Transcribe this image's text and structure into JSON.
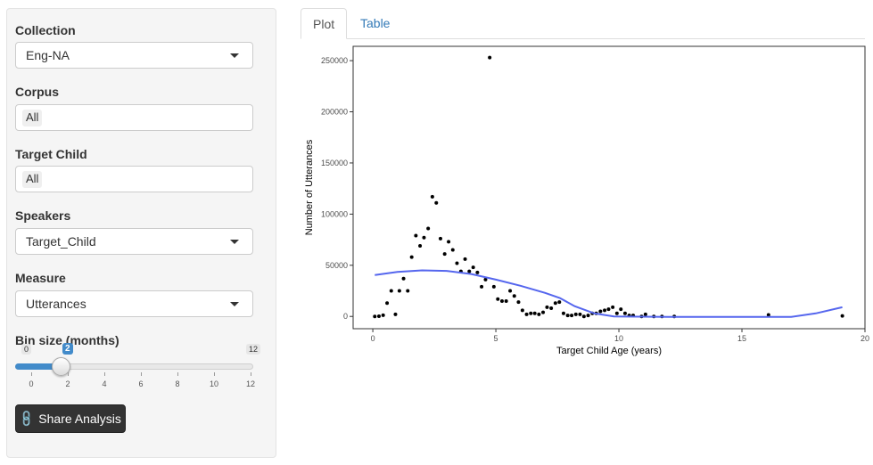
{
  "sidebar": {
    "collection": {
      "label": "Collection",
      "value": "Eng-NA"
    },
    "corpus": {
      "label": "Corpus",
      "value": "All"
    },
    "target_child": {
      "label": "Target Child",
      "value": "All"
    },
    "speakers": {
      "label": "Speakers",
      "value": "Target_Child"
    },
    "measure": {
      "label": "Measure",
      "value": "Utterances"
    },
    "bin_size": {
      "label": "Bin size (months)",
      "min": "0",
      "max": "12",
      "value": "2",
      "ticks": [
        "0",
        "2",
        "4",
        "6",
        "8",
        "10",
        "12"
      ]
    },
    "share_button": {
      "label": "Share Analysis",
      "icon": "link-icon"
    }
  },
  "tabs": [
    {
      "label": "Plot",
      "active": true
    },
    {
      "label": "Table",
      "active": false
    }
  ],
  "chart_data": {
    "type": "scatter",
    "xlabel": "Target Child Age (years)",
    "ylabel": "Number of Utterances",
    "xlim": [
      -0.8,
      20
    ],
    "ylim": [
      -12000,
      264000
    ],
    "x_ticks": [
      0,
      5,
      10,
      15,
      20
    ],
    "x_tick_labels": [
      "0",
      "5",
      "10",
      "15",
      "20"
    ],
    "y_ticks": [
      0,
      50000,
      100000,
      150000,
      200000,
      250000
    ],
    "y_tick_labels": [
      "0",
      "50000",
      "100000",
      "150000",
      "200000",
      "250000"
    ],
    "grid": false,
    "point_color": "#000000",
    "smooth_color": "#5566ee",
    "points": [
      [
        0.08,
        0
      ],
      [
        0.25,
        200
      ],
      [
        0.42,
        1200
      ],
      [
        0.58,
        13000
      ],
      [
        0.75,
        25000
      ],
      [
        0.92,
        2000
      ],
      [
        1.08,
        25000
      ],
      [
        1.25,
        37000
      ],
      [
        1.42,
        25000
      ],
      [
        1.58,
        58000
      ],
      [
        1.75,
        79000
      ],
      [
        1.92,
        69000
      ],
      [
        2.08,
        77000
      ],
      [
        2.25,
        86000
      ],
      [
        2.42,
        117000
      ],
      [
        2.58,
        111000
      ],
      [
        2.75,
        76000
      ],
      [
        2.92,
        61000
      ],
      [
        3.08,
        73000
      ],
      [
        3.25,
        65000
      ],
      [
        3.42,
        52000
      ],
      [
        3.58,
        44000
      ],
      [
        3.75,
        56000
      ],
      [
        3.92,
        44000
      ],
      [
        4.08,
        48000
      ],
      [
        4.25,
        43000
      ],
      [
        4.42,
        29000
      ],
      [
        4.58,
        36000
      ],
      [
        4.75,
        253000
      ],
      [
        4.92,
        29000
      ],
      [
        5.08,
        17000
      ],
      [
        5.25,
        15000
      ],
      [
        5.42,
        15000
      ],
      [
        5.58,
        25000
      ],
      [
        5.75,
        20000
      ],
      [
        5.92,
        14000
      ],
      [
        6.08,
        6000
      ],
      [
        6.25,
        2000
      ],
      [
        6.42,
        3000
      ],
      [
        6.58,
        3000
      ],
      [
        6.75,
        2000
      ],
      [
        6.92,
        4000
      ],
      [
        7.08,
        9000
      ],
      [
        7.25,
        8000
      ],
      [
        7.42,
        13000
      ],
      [
        7.58,
        14000
      ],
      [
        7.75,
        3000
      ],
      [
        7.92,
        1000
      ],
      [
        8.08,
        1000
      ],
      [
        8.25,
        2000
      ],
      [
        8.42,
        2000
      ],
      [
        8.58,
        0
      ],
      [
        8.75,
        1000
      ],
      [
        8.92,
        3000
      ],
      [
        9.08,
        3000
      ],
      [
        9.25,
        5000
      ],
      [
        9.42,
        6000
      ],
      [
        9.58,
        7000
      ],
      [
        9.75,
        9000
      ],
      [
        9.92,
        3000
      ],
      [
        10.08,
        7000
      ],
      [
        10.25,
        3000
      ],
      [
        10.42,
        1000
      ],
      [
        10.58,
        1000
      ],
      [
        10.92,
        0
      ],
      [
        11.08,
        2000
      ],
      [
        11.42,
        0
      ],
      [
        11.75,
        0
      ],
      [
        12.25,
        0
      ],
      [
        16.08,
        1500
      ],
      [
        19.08,
        500
      ]
    ],
    "smooth": [
      [
        0.08,
        40500
      ],
      [
        1.0,
        43500
      ],
      [
        2.0,
        45000
      ],
      [
        3.0,
        44500
      ],
      [
        4.0,
        41500
      ],
      [
        5.0,
        36000
      ],
      [
        6.0,
        30000
      ],
      [
        7.0,
        23000
      ],
      [
        7.6,
        18000
      ],
      [
        8.2,
        10000
      ],
      [
        9.0,
        3000
      ],
      [
        9.8,
        0
      ],
      [
        12.0,
        -500
      ],
      [
        15.0,
        -500
      ],
      [
        17.0,
        -500
      ],
      [
        18.0,
        3000
      ],
      [
        19.08,
        9000
      ]
    ]
  }
}
